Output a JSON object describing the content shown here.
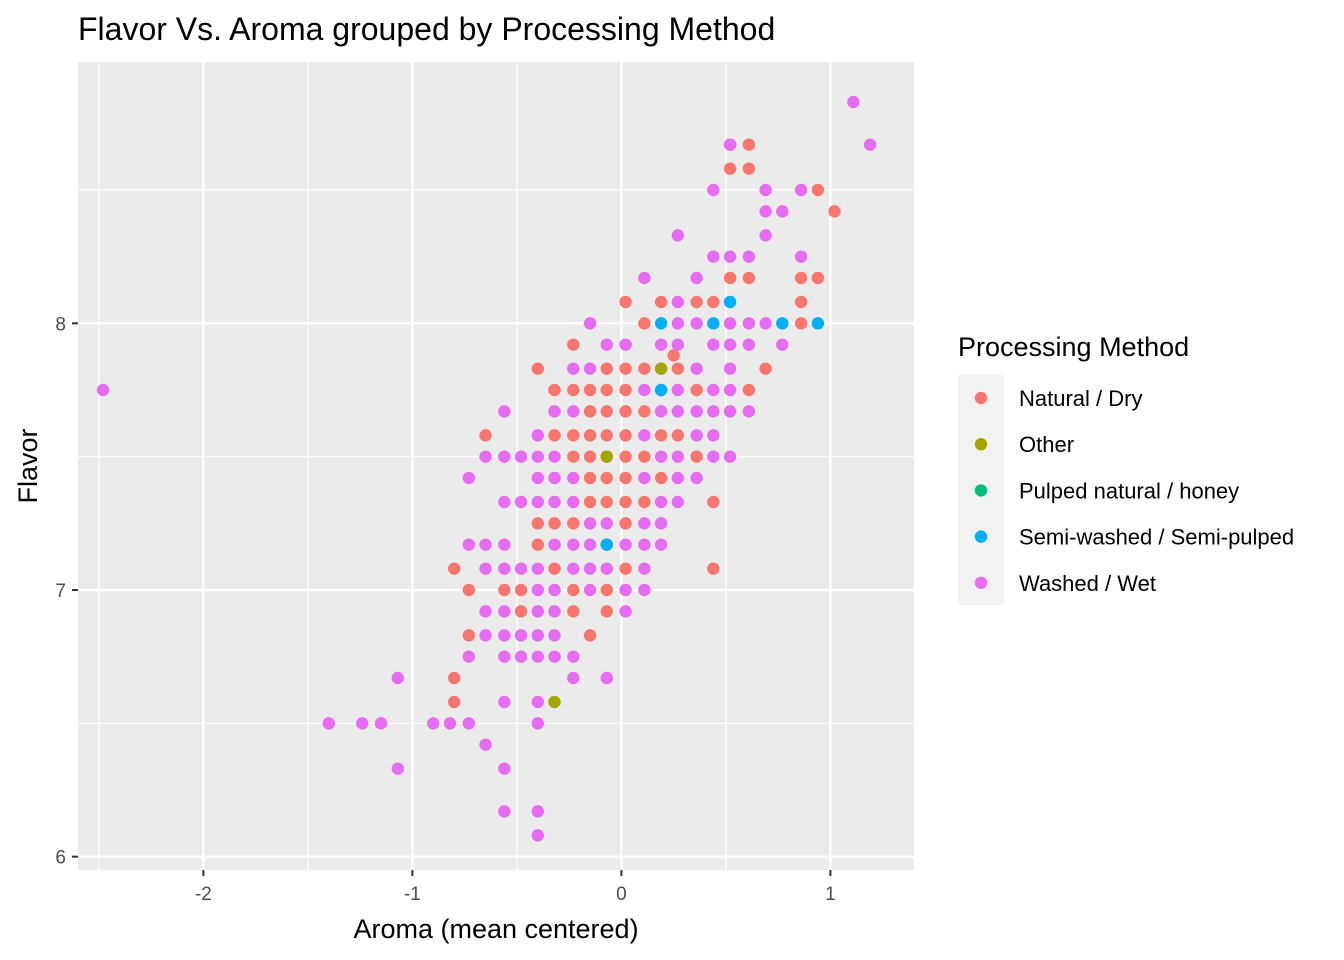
{
  "chart_data": {
    "type": "scatter",
    "title": "Flavor Vs. Aroma grouped by Processing Method",
    "xlabel": "Aroma (mean centered)",
    "ylabel": "Flavor",
    "xlim": [
      -2.6,
      1.4
    ],
    "ylim": [
      5.95,
      8.98
    ],
    "x_ticks": [
      -2,
      -1,
      0,
      1
    ],
    "y_ticks": [
      6,
      7,
      8
    ],
    "x_tick_labels": [
      "-2",
      "-1",
      "0",
      "1"
    ],
    "y_tick_labels": [
      "6",
      "7",
      "8"
    ],
    "grid": true,
    "legend": {
      "title": "Processing Method",
      "position": "right"
    },
    "series": [
      {
        "name": "Natural / Dry",
        "color": "#F8766D",
        "points": [
          [
            -0.8,
            6.58
          ],
          [
            -0.8,
            6.67
          ],
          [
            -0.8,
            7.08
          ],
          [
            -0.73,
            6.83
          ],
          [
            -0.73,
            7.0
          ],
          [
            -0.65,
            7.58
          ],
          [
            -0.56,
            7.0
          ],
          [
            -0.48,
            6.92
          ],
          [
            -0.48,
            7.0
          ],
          [
            -0.4,
            7.17
          ],
          [
            -0.4,
            7.25
          ],
          [
            -0.4,
            7.83
          ],
          [
            -0.32,
            7.08
          ],
          [
            -0.32,
            7.25
          ],
          [
            -0.32,
            7.58
          ],
          [
            -0.32,
            7.75
          ],
          [
            -0.23,
            7.0
          ],
          [
            -0.23,
            6.92
          ],
          [
            -0.23,
            7.25
          ],
          [
            -0.23,
            7.5
          ],
          [
            -0.23,
            7.58
          ],
          [
            -0.23,
            7.75
          ],
          [
            -0.23,
            7.92
          ],
          [
            -0.15,
            6.83
          ],
          [
            -0.15,
            7.33
          ],
          [
            -0.15,
            7.42
          ],
          [
            -0.15,
            7.5
          ],
          [
            -0.15,
            7.58
          ],
          [
            -0.15,
            7.67
          ],
          [
            -0.15,
            7.75
          ],
          [
            -0.07,
            6.92
          ],
          [
            -0.07,
            7.0
          ],
          [
            -0.07,
            7.17
          ],
          [
            -0.07,
            7.33
          ],
          [
            -0.07,
            7.42
          ],
          [
            -0.07,
            7.5
          ],
          [
            -0.07,
            7.58
          ],
          [
            -0.07,
            7.67
          ],
          [
            -0.07,
            7.75
          ],
          [
            -0.07,
            7.83
          ],
          [
            0.02,
            7.08
          ],
          [
            0.02,
            7.25
          ],
          [
            0.02,
            7.33
          ],
          [
            0.02,
            7.42
          ],
          [
            0.02,
            7.5
          ],
          [
            0.02,
            7.58
          ],
          [
            0.02,
            7.67
          ],
          [
            0.02,
            7.75
          ],
          [
            0.02,
            7.83
          ],
          [
            0.02,
            8.08
          ],
          [
            0.11,
            7.33
          ],
          [
            0.11,
            7.5
          ],
          [
            0.11,
            7.67
          ],
          [
            0.11,
            7.83
          ],
          [
            0.11,
            8.0
          ],
          [
            0.19,
            7.42
          ],
          [
            0.19,
            7.58
          ],
          [
            0.19,
            7.75
          ],
          [
            0.19,
            7.83
          ],
          [
            0.19,
            8.08
          ],
          [
            0.25,
            7.88
          ],
          [
            0.27,
            7.58
          ],
          [
            0.27,
            7.83
          ],
          [
            0.36,
            7.5
          ],
          [
            0.36,
            7.75
          ],
          [
            0.36,
            8.08
          ],
          [
            0.44,
            7.08
          ],
          [
            0.44,
            7.33
          ],
          [
            0.44,
            8.08
          ],
          [
            0.52,
            8.17
          ],
          [
            0.52,
            8.58
          ],
          [
            0.52,
            8.67
          ],
          [
            0.61,
            7.75
          ],
          [
            0.61,
            8.17
          ],
          [
            0.61,
            8.58
          ],
          [
            0.61,
            8.67
          ],
          [
            0.69,
            7.83
          ],
          [
            0.86,
            8.0
          ],
          [
            0.86,
            8.08
          ],
          [
            0.86,
            8.17
          ],
          [
            0.94,
            8.17
          ],
          [
            0.94,
            8.5
          ],
          [
            1.02,
            8.42
          ]
        ]
      },
      {
        "name": "Other",
        "color": "#A3A500",
        "points": [
          [
            -0.32,
            6.58
          ],
          [
            0.19,
            7.83
          ],
          [
            -0.07,
            7.5
          ]
        ]
      },
      {
        "name": "Pulped natural / honey",
        "color": "#00BF7D",
        "points": []
      },
      {
        "name": "Semi-washed / Semi-pulped",
        "color": "#00B0F6",
        "points": [
          [
            -0.07,
            7.17
          ],
          [
            0.19,
            7.75
          ],
          [
            0.19,
            8.0
          ],
          [
            0.44,
            8.0
          ],
          [
            0.52,
            8.08
          ],
          [
            0.77,
            8.0
          ],
          [
            0.94,
            8.0
          ]
        ]
      },
      {
        "name": "Washed / Wet",
        "color": "#E76BF3",
        "points": [
          [
            -2.48,
            7.75
          ],
          [
            -1.4,
            6.5
          ],
          [
            -1.24,
            6.5
          ],
          [
            -1.15,
            6.5
          ],
          [
            -1.07,
            6.67
          ],
          [
            -1.07,
            6.33
          ],
          [
            -0.9,
            6.5
          ],
          [
            -0.82,
            6.5
          ],
          [
            -0.73,
            6.5
          ],
          [
            -0.73,
            6.75
          ],
          [
            -0.73,
            7.17
          ],
          [
            -0.73,
            7.42
          ],
          [
            -0.65,
            6.42
          ],
          [
            -0.65,
            6.83
          ],
          [
            -0.65,
            6.92
          ],
          [
            -0.65,
            7.08
          ],
          [
            -0.65,
            7.17
          ],
          [
            -0.65,
            7.5
          ],
          [
            -0.56,
            6.17
          ],
          [
            -0.56,
            6.33
          ],
          [
            -0.56,
            6.58
          ],
          [
            -0.56,
            6.75
          ],
          [
            -0.56,
            6.83
          ],
          [
            -0.56,
            6.92
          ],
          [
            -0.56,
            7.08
          ],
          [
            -0.56,
            7.17
          ],
          [
            -0.56,
            7.33
          ],
          [
            -0.56,
            7.5
          ],
          [
            -0.56,
            7.67
          ],
          [
            -0.48,
            6.75
          ],
          [
            -0.48,
            6.83
          ],
          [
            -0.48,
            7.08
          ],
          [
            -0.48,
            7.33
          ],
          [
            -0.48,
            7.5
          ],
          [
            -0.4,
            6.08
          ],
          [
            -0.4,
            6.17
          ],
          [
            -0.4,
            6.5
          ],
          [
            -0.4,
            6.58
          ],
          [
            -0.4,
            6.75
          ],
          [
            -0.4,
            6.83
          ],
          [
            -0.4,
            6.92
          ],
          [
            -0.4,
            7.0
          ],
          [
            -0.4,
            7.08
          ],
          [
            -0.4,
            7.33
          ],
          [
            -0.4,
            7.42
          ],
          [
            -0.4,
            7.5
          ],
          [
            -0.4,
            7.58
          ],
          [
            -0.32,
            6.75
          ],
          [
            -0.32,
            6.83
          ],
          [
            -0.32,
            6.92
          ],
          [
            -0.32,
            7.0
          ],
          [
            -0.32,
            7.17
          ],
          [
            -0.32,
            7.33
          ],
          [
            -0.32,
            7.42
          ],
          [
            -0.32,
            7.5
          ],
          [
            -0.32,
            7.67
          ],
          [
            -0.23,
            6.67
          ],
          [
            -0.23,
            6.75
          ],
          [
            -0.23,
            7.08
          ],
          [
            -0.23,
            7.17
          ],
          [
            -0.23,
            7.33
          ],
          [
            -0.23,
            7.42
          ],
          [
            -0.23,
            7.67
          ],
          [
            -0.23,
            7.83
          ],
          [
            -0.15,
            7.0
          ],
          [
            -0.15,
            7.08
          ],
          [
            -0.15,
            7.17
          ],
          [
            -0.15,
            7.25
          ],
          [
            -0.15,
            7.83
          ],
          [
            -0.15,
            8.0
          ],
          [
            -0.07,
            6.67
          ],
          [
            -0.07,
            7.08
          ],
          [
            -0.07,
            7.25
          ],
          [
            -0.07,
            7.92
          ],
          [
            0.02,
            6.92
          ],
          [
            0.02,
            7.0
          ],
          [
            0.02,
            7.17
          ],
          [
            0.02,
            7.92
          ],
          [
            0.11,
            7.0
          ],
          [
            0.11,
            7.08
          ],
          [
            0.11,
            7.17
          ],
          [
            0.11,
            7.25
          ],
          [
            0.11,
            7.42
          ],
          [
            0.11,
            7.58
          ],
          [
            0.11,
            7.75
          ],
          [
            0.11,
            8.17
          ],
          [
            0.19,
            7.17
          ],
          [
            0.19,
            7.25
          ],
          [
            0.19,
            7.33
          ],
          [
            0.19,
            7.5
          ],
          [
            0.19,
            7.67
          ],
          [
            0.19,
            7.92
          ],
          [
            0.27,
            7.33
          ],
          [
            0.27,
            7.42
          ],
          [
            0.27,
            7.5
          ],
          [
            0.27,
            7.67
          ],
          [
            0.27,
            7.75
          ],
          [
            0.27,
            7.92
          ],
          [
            0.27,
            8.0
          ],
          [
            0.27,
            8.08
          ],
          [
            0.27,
            8.33
          ],
          [
            0.36,
            7.42
          ],
          [
            0.36,
            7.58
          ],
          [
            0.36,
            7.67
          ],
          [
            0.36,
            7.83
          ],
          [
            0.36,
            8.0
          ],
          [
            0.36,
            8.17
          ],
          [
            0.44,
            7.5
          ],
          [
            0.44,
            7.58
          ],
          [
            0.44,
            7.67
          ],
          [
            0.44,
            7.75
          ],
          [
            0.44,
            7.92
          ],
          [
            0.44,
            8.25
          ],
          [
            0.44,
            8.5
          ],
          [
            0.52,
            7.5
          ],
          [
            0.52,
            7.67
          ],
          [
            0.52,
            7.75
          ],
          [
            0.52,
            7.83
          ],
          [
            0.52,
            7.92
          ],
          [
            0.52,
            8.0
          ],
          [
            0.52,
            8.25
          ],
          [
            0.52,
            8.67
          ],
          [
            0.61,
            7.67
          ],
          [
            0.61,
            7.92
          ],
          [
            0.61,
            8.0
          ],
          [
            0.61,
            8.25
          ],
          [
            0.69,
            8.0
          ],
          [
            0.69,
            8.33
          ],
          [
            0.69,
            8.42
          ],
          [
            0.69,
            8.5
          ],
          [
            0.77,
            7.92
          ],
          [
            0.77,
            8.42
          ],
          [
            0.86,
            8.25
          ],
          [
            0.86,
            8.5
          ],
          [
            1.11,
            8.83
          ],
          [
            1.19,
            8.67
          ]
        ]
      }
    ]
  }
}
